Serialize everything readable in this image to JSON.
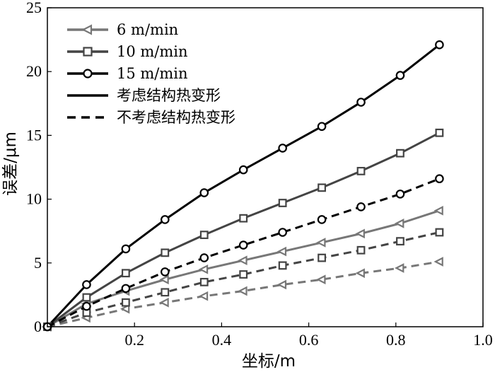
{
  "chart_data": {
    "type": "line",
    "xlabel": "坐标/m",
    "ylabel": "误差/μm",
    "xlim": [
      0,
      1.0
    ],
    "ylim": [
      0,
      25
    ],
    "xticks": [
      {
        "value": 0.2,
        "label": "0.2"
      },
      {
        "value": 0.4,
        "label": "0.4"
      },
      {
        "value": 0.6,
        "label": "0.6"
      },
      {
        "value": 0.8,
        "label": "0.8"
      },
      {
        "value": 1.0,
        "label": "1.0"
      }
    ],
    "yticks": [
      {
        "value": 0,
        "label": "0"
      },
      {
        "value": 5,
        "label": "5"
      },
      {
        "value": 10,
        "label": "10"
      },
      {
        "value": 15,
        "label": "15"
      },
      {
        "value": 20,
        "label": "20"
      },
      {
        "value": 25,
        "label": "25"
      }
    ],
    "x": [
      0,
      0.09,
      0.18,
      0.27,
      0.36,
      0.45,
      0.54,
      0.63,
      0.72,
      0.81,
      0.9
    ],
    "legend_position": "top-left",
    "grid": false,
    "series": [
      {
        "speed_label": "6 m/min",
        "style": "solid",
        "marker": "triangle-left",
        "color": "#777777",
        "values": [
          0,
          1.8,
          2.8,
          3.7,
          4.5,
          5.2,
          5.9,
          6.6,
          7.3,
          8.1,
          9.1
        ]
      },
      {
        "speed_label": "10 m/min",
        "style": "solid",
        "marker": "square",
        "color": "#444444",
        "values": [
          0,
          2.3,
          4.2,
          5.8,
          7.2,
          8.5,
          9.7,
          10.9,
          12.2,
          13.6,
          15.2
        ]
      },
      {
        "speed_label": "15 m/min",
        "style": "solid",
        "marker": "circle",
        "color": "#000000",
        "values": [
          0,
          3.3,
          6.1,
          8.4,
          10.5,
          12.3,
          14.0,
          15.7,
          17.6,
          19.7,
          22.1
        ]
      },
      {
        "speed_label": "6 m/min",
        "style": "dashed",
        "marker": "triangle-left",
        "color": "#777777",
        "values": [
          0,
          0.7,
          1.4,
          1.9,
          2.4,
          2.8,
          3.3,
          3.7,
          4.2,
          4.6,
          5.1
        ]
      },
      {
        "speed_label": "10 m/min",
        "style": "dashed",
        "marker": "square",
        "color": "#444444",
        "values": [
          0,
          1.1,
          1.9,
          2.7,
          3.5,
          4.1,
          4.8,
          5.4,
          6.0,
          6.7,
          7.4
        ]
      },
      {
        "speed_label": "15 m/min",
        "style": "dashed",
        "marker": "circle",
        "color": "#000000",
        "values": [
          0,
          1.6,
          3.0,
          4.3,
          5.4,
          6.4,
          7.4,
          8.4,
          9.4,
          10.4,
          11.6
        ]
      }
    ],
    "legend": [
      {
        "label": "6 m/min",
        "line": "solid",
        "marker": "triangle-left",
        "color": "#777777"
      },
      {
        "label": "10 m/min",
        "line": "solid",
        "marker": "square",
        "color": "#444444"
      },
      {
        "label": "15 m/min",
        "line": "solid",
        "marker": "circle",
        "color": "#000000"
      },
      {
        "label": "考虑结构热变形",
        "line": "solid",
        "marker": "none",
        "color": "#000000"
      },
      {
        "label": "不考虑结构热变形",
        "line": "dashed",
        "marker": "none",
        "color": "#000000"
      }
    ]
  }
}
